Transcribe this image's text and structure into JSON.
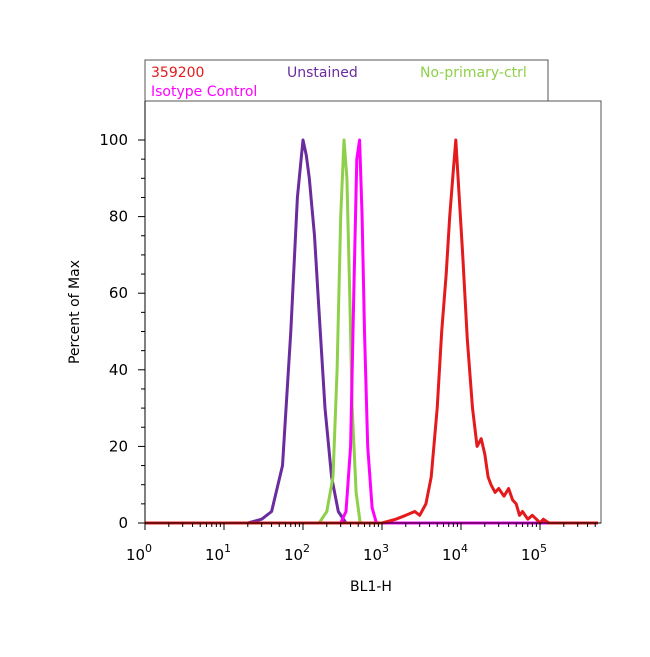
{
  "chart_data": {
    "type": "line",
    "title": "",
    "xlabel": "BL1-H",
    "ylabel": "Percent of Max",
    "x_scale": "log",
    "xlim": [
      1,
      600000
    ],
    "ylim": [
      0,
      110
    ],
    "x_ticks": [
      {
        "base": "10",
        "exp": "0",
        "value": 1
      },
      {
        "base": "10",
        "exp": "1",
        "value": 10
      },
      {
        "base": "10",
        "exp": "2",
        "value": 100
      },
      {
        "base": "10",
        "exp": "3",
        "value": 1000
      },
      {
        "base": "10",
        "exp": "4",
        "value": 10000
      },
      {
        "base": "10",
        "exp": "5",
        "value": 100000
      }
    ],
    "y_ticks": [
      "0",
      "20",
      "40",
      "60",
      "80",
      "100"
    ],
    "legend_placement": "top",
    "grid": false,
    "series": [
      {
        "name": "359200",
        "color": "#e41a1c",
        "x": [
          1,
          1000,
          1500,
          2000,
          2600,
          3000,
          3600,
          4200,
          5000,
          5700,
          6500,
          7200,
          8000,
          8600,
          9200,
          10500,
          12000,
          14000,
          16000,
          18000,
          20000,
          22000,
          24000,
          27000,
          30000,
          35000,
          40000,
          45000,
          50000,
          55000,
          60000,
          70000,
          80000,
          90000,
          100000,
          110000,
          130000,
          200000,
          600000
        ],
        "y": [
          0,
          0,
          1,
          2,
          3,
          2,
          5,
          12,
          30,
          50,
          65,
          80,
          92,
          100,
          90,
          70,
          48,
          30,
          20,
          22,
          18,
          12,
          10,
          8,
          9,
          7,
          9,
          6,
          5,
          2,
          3,
          1,
          2,
          1,
          0,
          1,
          0,
          0,
          0
        ]
      },
      {
        "name": "Unstained",
        "color": "#6a2c9e",
        "x": [
          1,
          20,
          30,
          40,
          55,
          70,
          85,
          100,
          110,
          120,
          140,
          160,
          190,
          230,
          280,
          350,
          600000
        ],
        "y": [
          0,
          0,
          1,
          3,
          15,
          50,
          85,
          100,
          96,
          90,
          75,
          55,
          30,
          12,
          3,
          0,
          0
        ]
      },
      {
        "name": "No-primary-ctrl",
        "color": "#8fd04a",
        "x": [
          1,
          160,
          200,
          240,
          270,
          300,
          330,
          360,
          390,
          420,
          470,
          530,
          600000
        ],
        "y": [
          0,
          0,
          3,
          12,
          40,
          80,
          100,
          90,
          60,
          30,
          8,
          0,
          0
        ]
      },
      {
        "name": "Isotype Control",
        "color": "#ff00ff",
        "x": [
          1,
          300,
          350,
          400,
          440,
          480,
          520,
          560,
          600,
          660,
          750,
          850,
          600000
        ],
        "y": [
          0,
          0,
          3,
          20,
          60,
          95,
          100,
          80,
          50,
          20,
          4,
          0,
          0
        ]
      }
    ]
  }
}
